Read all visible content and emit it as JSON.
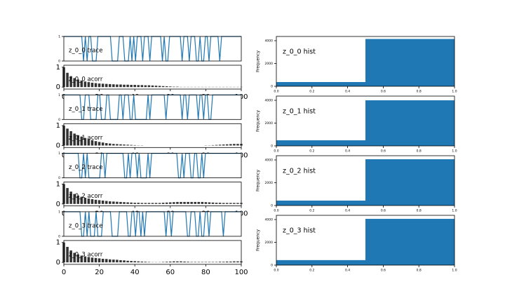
{
  "chart_data": [
    {
      "type": "line",
      "annotation": "z_0_0 trace",
      "color": "#1f77b4",
      "xlim": [
        0,
        99
      ],
      "ylim": [
        0,
        1
      ],
      "yticks": [
        0,
        1
      ],
      "values": [
        1,
        1,
        1,
        1,
        1,
        1,
        1,
        1,
        1,
        1,
        1,
        0,
        1,
        0,
        1,
        1,
        0,
        0,
        0,
        1,
        1,
        1,
        1,
        1,
        1,
        1,
        1,
        0,
        0,
        0,
        0,
        1,
        1,
        1,
        0,
        0,
        0,
        1,
        0,
        1,
        0,
        1,
        1,
        1,
        0,
        1,
        1,
        1,
        0,
        1,
        1,
        1,
        1,
        1,
        1,
        0,
        1,
        0,
        0,
        1,
        1,
        1,
        1,
        1,
        1,
        1,
        0,
        1,
        1,
        1,
        0,
        1,
        1,
        1,
        0,
        0,
        1,
        0,
        0,
        1,
        1,
        0,
        1,
        1,
        1,
        1,
        1,
        0,
        1,
        1,
        1,
        1,
        1,
        1,
        1,
        1,
        1,
        1,
        1,
        1
      ]
    },
    {
      "type": "bar",
      "annotation": "z_0_0 acorr",
      "color": "#333333",
      "xlim": [
        0,
        100
      ],
      "xticks": [
        0,
        20,
        40,
        60,
        80,
        100
      ],
      "ylim": [
        -0.1,
        1.1
      ],
      "yticks": [
        0,
        1
      ],
      "x": [
        0,
        2,
        4,
        6,
        8,
        10,
        12,
        14,
        16,
        18,
        20,
        22,
        24,
        26,
        28,
        30,
        32,
        34,
        36,
        38,
        40,
        42,
        44,
        46,
        48,
        50,
        52,
        54,
        56,
        58,
        60,
        62,
        64,
        66,
        68,
        70,
        72,
        74,
        76,
        78,
        80,
        82,
        84,
        86,
        88,
        90,
        92,
        94,
        96,
        98,
        100
      ],
      "values": [
        1,
        0.72,
        0.55,
        0.45,
        0.38,
        0.33,
        0.28,
        0.25,
        0.22,
        0.2,
        0.18,
        0.17,
        0.16,
        0.15,
        0.14,
        0.13,
        0.13,
        0.12,
        0.12,
        0.11,
        0.11,
        0.1,
        0.1,
        0.09,
        0.09,
        0.08,
        0.07,
        0.06,
        0.05,
        0.04,
        0.03,
        0.02,
        0.02,
        0.01,
        0.01,
        0.01,
        0.01,
        0.01,
        0.01,
        0.01,
        0.01,
        0.01,
        0.01,
        0.01,
        0.01,
        0.01,
        0.01,
        0.01,
        0.01,
        0.01,
        0.01
      ]
    },
    {
      "type": "histogram",
      "annotation": "z_0_0 hist",
      "ylabel": "Frequency",
      "color": "#1f77b4",
      "bins": [
        0,
        0.5,
        1
      ],
      "values": [
        370,
        4150
      ],
      "xlim": [
        0,
        1
      ],
      "xticks": [
        {
          "value": 0,
          "label": "0.0"
        },
        0.2,
        0.4,
        0.6,
        0.8,
        {
          "value": 1,
          "label": "1.0"
        }
      ],
      "ylim": [
        0,
        4370
      ],
      "yticks": [
        0,
        2000,
        4000
      ]
    },
    {
      "type": "line",
      "annotation": "z_0_1 trace",
      "color": "#1f77b4",
      "xlim": [
        0,
        99
      ],
      "ylim": [
        0,
        1
      ],
      "yticks": [
        0,
        1
      ],
      "values": [
        1,
        1,
        1,
        1,
        1,
        1,
        1,
        1,
        1,
        1,
        0,
        0,
        1,
        1,
        1,
        0,
        0,
        0,
        0,
        1,
        1,
        0,
        0,
        0,
        1,
        1,
        0,
        0,
        0,
        0,
        0,
        1,
        1,
        0,
        1,
        1,
        1,
        0,
        0,
        1,
        0,
        0,
        0,
        0,
        0,
        0,
        0,
        1,
        0,
        1,
        1,
        1,
        1,
        1,
        1,
        1,
        1,
        0,
        1,
        1,
        1,
        1,
        1,
        1,
        1,
        1,
        0,
        1,
        1,
        0,
        1,
        1,
        1,
        1,
        1,
        0,
        1,
        1,
        0,
        1,
        1,
        0,
        0,
        1,
        1,
        1,
        1,
        1,
        1,
        1,
        1,
        1,
        1,
        1,
        1,
        1,
        1,
        1,
        1,
        1
      ]
    },
    {
      "type": "bar",
      "annotation": "z_0_1 acorr",
      "color": "#333333",
      "xlim": [
        0,
        100
      ],
      "xticks": [
        0,
        20,
        40,
        60,
        80,
        100
      ],
      "ylim": [
        -0.1,
        1.1
      ],
      "yticks": [
        0,
        1
      ],
      "x": [
        0,
        2,
        4,
        6,
        8,
        10,
        12,
        14,
        16,
        18,
        20,
        22,
        24,
        26,
        28,
        30,
        32,
        34,
        36,
        38,
        40,
        42,
        44,
        46,
        48,
        50,
        52,
        54,
        56,
        58,
        60,
        62,
        64,
        66,
        68,
        70,
        72,
        74,
        76,
        78,
        80,
        82,
        84,
        86,
        88,
        90,
        92,
        94,
        96,
        98,
        100
      ],
      "values": [
        1,
        0.85,
        0.72,
        0.6,
        0.52,
        0.45,
        0.38,
        0.32,
        0.27,
        0.22,
        0.18,
        0.15,
        0.12,
        0.1,
        0.08,
        0.07,
        0.06,
        0.05,
        0.04,
        0.03,
        0.02,
        0.01,
        0.01,
        0,
        0,
        0,
        0,
        0,
        0,
        0,
        0,
        0,
        0,
        0,
        0,
        0,
        0,
        0,
        0,
        0,
        0.01,
        0.01,
        0.02,
        0.03,
        0.04,
        0.05,
        0.06,
        0.07,
        0.08,
        0.08,
        0.08
      ]
    },
    {
      "type": "histogram",
      "annotation": "z_0_1 hist",
      "ylabel": "Frequency",
      "color": "#1f77b4",
      "bins": [
        0,
        0.5,
        1
      ],
      "values": [
        490,
        4000
      ],
      "xlim": [
        0,
        1
      ],
      "xticks": [
        {
          "value": 0,
          "label": "0.0"
        },
        0.2,
        0.4,
        0.6,
        0.8,
        {
          "value": 1,
          "label": "1.0"
        }
      ],
      "ylim": [
        0,
        4370
      ],
      "yticks": [
        0,
        2000,
        4000
      ]
    },
    {
      "type": "line",
      "annotation": "z_0_2 trace",
      "color": "#1f77b4",
      "xlim": [
        0,
        99
      ],
      "ylim": [
        0,
        1
      ],
      "yticks": [
        0,
        1
      ],
      "values": [
        1,
        1,
        1,
        1,
        1,
        1,
        1,
        1,
        1,
        0,
        0,
        1,
        0,
        1,
        0,
        0,
        0,
        0,
        0,
        0,
        0,
        1,
        1,
        0,
        1,
        1,
        1,
        1,
        1,
        1,
        1,
        1,
        1,
        1,
        0,
        0,
        1,
        0,
        1,
        1,
        1,
        0,
        1,
        0,
        0,
        0,
        0,
        1,
        0,
        1,
        1,
        1,
        1,
        1,
        1,
        1,
        1,
        1,
        1,
        1,
        1,
        1,
        1,
        1,
        0,
        0,
        1,
        0,
        1,
        1,
        1,
        0,
        0,
        1,
        1,
        0,
        0,
        1,
        0,
        1,
        1,
        1,
        1,
        1,
        1,
        1,
        1,
        1,
        1,
        1,
        1,
        1,
        1,
        1,
        1,
        1,
        1,
        1,
        1,
        1
      ]
    },
    {
      "type": "bar",
      "annotation": "z_0_2 acorr",
      "color": "#333333",
      "xlim": [
        0,
        100
      ],
      "xticks": [
        0,
        20,
        40,
        60,
        80,
        100
      ],
      "ylim": [
        -0.1,
        1.1
      ],
      "yticks": [
        0,
        1
      ],
      "x": [
        0,
        2,
        4,
        6,
        8,
        10,
        12,
        14,
        16,
        18,
        20,
        22,
        24,
        26,
        28,
        30,
        32,
        34,
        36,
        38,
        40,
        42,
        44,
        46,
        48,
        50,
        52,
        54,
        56,
        58,
        60,
        62,
        64,
        66,
        68,
        70,
        72,
        74,
        76,
        78,
        80,
        82,
        84,
        86,
        88,
        90,
        92,
        94,
        96,
        98,
        100
      ],
      "values": [
        1,
        0.8,
        0.62,
        0.5,
        0.42,
        0.36,
        0.31,
        0.27,
        0.24,
        0.21,
        0.19,
        0.17,
        0.15,
        0.13,
        0.12,
        0.11,
        0.1,
        0.09,
        0.08,
        0.07,
        0.06,
        0.06,
        0.05,
        0.05,
        0.05,
        0.05,
        0.05,
        0.05,
        0.06,
        0.07,
        0.08,
        0.09,
        0.1,
        0.1,
        0.1,
        0.1,
        0.1,
        0.1,
        0.1,
        0.1,
        0.09,
        0.08,
        0.07,
        0.06,
        0.06,
        0.05,
        0.05,
        0.05,
        0.05,
        0.05,
        0.05
      ]
    },
    {
      "type": "histogram",
      "annotation": "z_0_2 hist",
      "ylabel": "Frequency",
      "color": "#1f77b4",
      "bins": [
        0,
        0.5,
        1
      ],
      "values": [
        430,
        4060
      ],
      "xlim": [
        0,
        1
      ],
      "xticks": [
        {
          "value": 0,
          "label": "0.0"
        },
        0.2,
        0.4,
        0.6,
        0.8,
        {
          "value": 1,
          "label": "1.0"
        }
      ],
      "ylim": [
        0,
        4370
      ],
      "yticks": [
        0,
        2000,
        4000
      ]
    },
    {
      "type": "line",
      "annotation": "z_0_3 trace",
      "color": "#1f77b4",
      "xlim": [
        0,
        99
      ],
      "ylim": [
        0,
        1
      ],
      "yticks": [
        0,
        1
      ],
      "values": [
        1,
        1,
        1,
        1,
        1,
        1,
        1,
        1,
        1,
        1,
        0,
        0,
        1,
        0,
        1,
        0,
        0,
        0,
        1,
        0,
        0,
        0,
        1,
        1,
        1,
        1,
        1,
        0,
        0,
        0,
        0,
        1,
        1,
        1,
        1,
        1,
        0,
        0,
        1,
        1,
        0,
        1,
        1,
        0,
        1,
        0,
        1,
        1,
        1,
        1,
        1,
        1,
        1,
        1,
        1,
        1,
        1,
        0,
        1,
        1,
        0,
        1,
        1,
        1,
        1,
        1,
        1,
        1,
        1,
        0,
        0,
        1,
        1,
        1,
        0,
        0,
        1,
        0,
        0,
        1,
        1,
        0,
        1,
        1,
        1,
        1,
        1,
        1,
        1,
        0,
        1,
        1,
        1,
        1,
        1,
        1,
        1,
        1,
        1,
        1
      ]
    },
    {
      "type": "bar",
      "annotation": "z_0_3 acorr",
      "color": "#333333",
      "xlim": [
        0,
        100
      ],
      "xticks": [
        0,
        20,
        40,
        60,
        80,
        100
      ],
      "ylim": [
        -0.1,
        1.1
      ],
      "yticks": [
        0,
        1
      ],
      "x": [
        0,
        2,
        4,
        6,
        8,
        10,
        12,
        14,
        16,
        18,
        20,
        22,
        24,
        26,
        28,
        30,
        32,
        34,
        36,
        38,
        40,
        42,
        44,
        46,
        48,
        50,
        52,
        54,
        56,
        58,
        60,
        62,
        64,
        66,
        68,
        70,
        72,
        74,
        76,
        78,
        80,
        82,
        84,
        86,
        88,
        90,
        92,
        94,
        96,
        98,
        100
      ],
      "values": [
        1,
        0.78,
        0.6,
        0.48,
        0.4,
        0.34,
        0.3,
        0.27,
        0.24,
        0.22,
        0.2,
        0.18,
        0.17,
        0.15,
        0.14,
        0.13,
        0.11,
        0.1,
        0.08,
        0.07,
        0.06,
        0.05,
        0.04,
        0.03,
        0.02,
        0.01,
        0.01,
        0.01,
        0.02,
        0.03,
        0.04,
        0.05,
        0.05,
        0.05,
        0.04,
        0.03,
        0.02,
        0.02,
        0.02,
        0.02,
        0.02,
        0.02,
        0.02,
        0.02,
        0.03,
        0.03,
        0.04,
        0.04,
        0.05,
        0.05,
        0.05
      ]
    },
    {
      "type": "histogram",
      "annotation": "z_0_3 hist",
      "ylabel": "Frequency",
      "color": "#1f77b4",
      "bins": [
        0,
        0.5,
        1
      ],
      "values": [
        440,
        4060
      ],
      "xlim": [
        0,
        1
      ],
      "xticks": [
        {
          "value": 0,
          "label": "0.0"
        },
        0.2,
        0.4,
        0.6,
        0.8,
        {
          "value": 1,
          "label": "1.0"
        }
      ],
      "ylim": [
        0,
        4370
      ],
      "yticks": [
        0,
        2000,
        4000
      ]
    }
  ]
}
